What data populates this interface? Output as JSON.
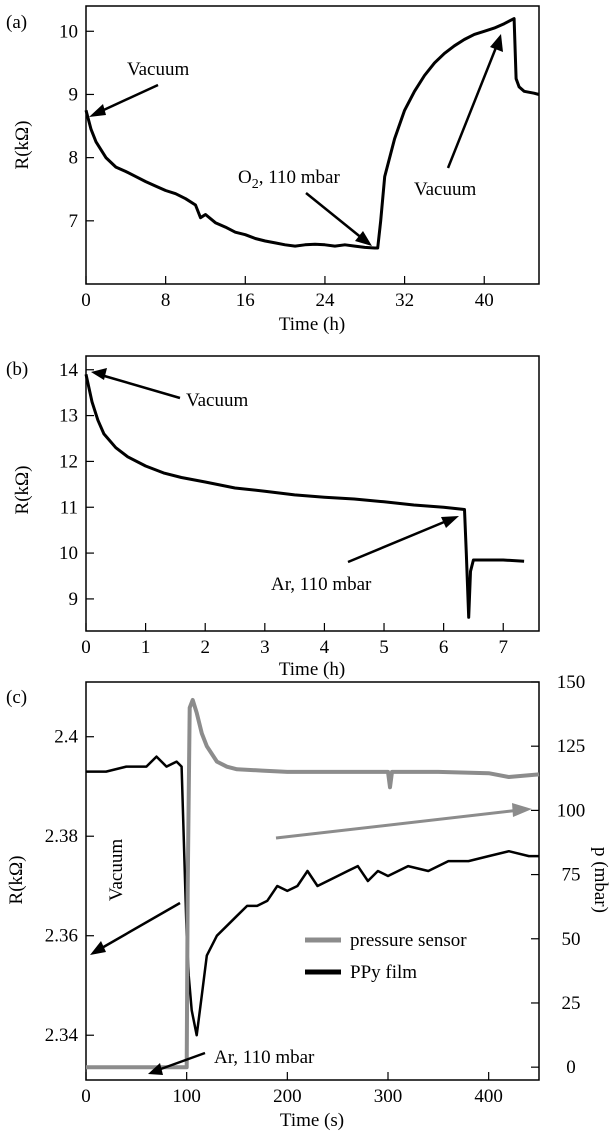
{
  "chart_data": [
    {
      "type": "line",
      "panel_label": "(a)",
      "xlabel": "Time (h)",
      "ylabel": "R(kΩ)",
      "xlim": [
        0,
        45.5
      ],
      "ylim": [
        6.0,
        10.4
      ],
      "xticks": [
        0,
        8,
        16,
        24,
        32,
        40
      ],
      "yticks": [
        7,
        8,
        9,
        10
      ],
      "series": [
        {
          "color": "#000000",
          "x": [
            0,
            0.5,
            1,
            2,
            3,
            4,
            5,
            6,
            7,
            8,
            9,
            10,
            11,
            11.5,
            12,
            13,
            14,
            15,
            16,
            17,
            18,
            19,
            20,
            21,
            22,
            23,
            24,
            25,
            26,
            27,
            28,
            29,
            29.3,
            29.6,
            30,
            31,
            32,
            33,
            34,
            35,
            36,
            37,
            38,
            39,
            40,
            41,
            42,
            43,
            43.2,
            43.5,
            44,
            45,
            45.5
          ],
          "y": [
            8.75,
            8.45,
            8.25,
            8.0,
            7.85,
            7.78,
            7.7,
            7.62,
            7.55,
            7.48,
            7.43,
            7.35,
            7.25,
            7.05,
            7.1,
            6.97,
            6.9,
            6.82,
            6.78,
            6.72,
            6.68,
            6.65,
            6.62,
            6.6,
            6.62,
            6.63,
            6.62,
            6.6,
            6.62,
            6.6,
            6.58,
            6.57,
            6.57,
            7.0,
            7.7,
            8.3,
            8.75,
            9.05,
            9.3,
            9.5,
            9.65,
            9.77,
            9.87,
            9.95,
            10.0,
            10.05,
            10.12,
            10.2,
            9.25,
            9.12,
            9.05,
            9.02,
            9.0
          ]
        }
      ],
      "annotations": [
        "Vacuum",
        "O2, 110 mbar",
        "Vacuum"
      ]
    },
    {
      "type": "line",
      "panel_label": "(b)",
      "xlabel": "Time (h)",
      "ylabel": "R(kΩ)",
      "xlim": [
        0,
        7.6
      ],
      "ylim": [
        8.3,
        14.3
      ],
      "xticks": [
        0,
        1,
        2,
        3,
        4,
        5,
        6,
        7
      ],
      "yticks": [
        9,
        10,
        11,
        12,
        13,
        14
      ],
      "series": [
        {
          "color": "#000000",
          "x": [
            0,
            0.05,
            0.1,
            0.2,
            0.3,
            0.5,
            0.7,
            1.0,
            1.3,
            1.6,
            2.0,
            2.5,
            3.0,
            3.5,
            4.0,
            4.5,
            5.0,
            5.5,
            6.0,
            6.35,
            6.38,
            6.42,
            6.45,
            6.5,
            6.6,
            7.0,
            7.35
          ],
          "y": [
            13.9,
            13.6,
            13.3,
            12.9,
            12.6,
            12.3,
            12.1,
            11.9,
            11.75,
            11.65,
            11.55,
            11.42,
            11.35,
            11.27,
            11.22,
            11.18,
            11.12,
            11.05,
            11.0,
            10.95,
            10.0,
            8.6,
            9.6,
            9.85,
            9.85,
            9.85,
            9.82
          ]
        }
      ],
      "annotations": [
        "Vacuum",
        "Ar, 110 mbar"
      ]
    },
    {
      "type": "line",
      "panel_label": "(c)",
      "xlabel": "Time (s)",
      "ylabel": "R(kΩ)",
      "ylabel_right": "p (mbar)",
      "xlim": [
        0,
        450
      ],
      "ylim": [
        2.331,
        2.411
      ],
      "ylim_right": [
        -5,
        150
      ],
      "xticks": [
        0,
        100,
        200,
        300,
        400
      ],
      "yticks": [
        2.34,
        2.36,
        2.38,
        2.4
      ],
      "yticks_right": [
        0,
        25,
        50,
        75,
        100,
        125,
        150
      ],
      "legend": [
        "pressure sensor",
        "PPy film"
      ],
      "series": [
        {
          "name": "pressure sensor",
          "axis": "right",
          "color": "#8c8c8c",
          "x": [
            0,
            100,
            101,
            103,
            106,
            110,
            115,
            120,
            130,
            140,
            150,
            175,
            200,
            250,
            300,
            302,
            304,
            350,
            400,
            420,
            450
          ],
          "y": [
            0,
            0,
            70,
            140,
            143,
            138,
            130,
            125,
            119,
            117,
            116,
            115.5,
            115,
            115,
            115,
            109,
            115,
            115,
            114.5,
            113,
            114
          ]
        },
        {
          "name": "PPy film",
          "axis": "left",
          "color": "#000000",
          "x": [
            0,
            20,
            40,
            60,
            70,
            80,
            90,
            95,
            100,
            102,
            105,
            110,
            115,
            120,
            130,
            140,
            150,
            160,
            170,
            180,
            190,
            200,
            210,
            220,
            230,
            240,
            250,
            260,
            270,
            280,
            290,
            300,
            320,
            340,
            360,
            380,
            400,
            420,
            440,
            450
          ],
          "y": [
            2.393,
            2.393,
            2.394,
            2.394,
            2.396,
            2.394,
            2.395,
            2.394,
            2.36,
            2.352,
            2.345,
            2.34,
            2.348,
            2.356,
            2.36,
            2.362,
            2.364,
            2.366,
            2.366,
            2.367,
            2.37,
            2.369,
            2.37,
            2.373,
            2.37,
            2.371,
            2.372,
            2.373,
            2.374,
            2.371,
            2.373,
            2.372,
            2.374,
            2.373,
            2.375,
            2.375,
            2.376,
            2.377,
            2.376,
            2.376
          ]
        }
      ],
      "annotations": [
        "Vacuum",
        "Ar, 110 mbar"
      ]
    }
  ],
  "text": {
    "a_vacuum": "Vacuum",
    "a_o2_prefix": "O",
    "a_o2_sub": "2",
    "a_o2_suffix": ", 110 mbar",
    "a_vacuum2": "Vacuum",
    "b_vacuum": "Vacuum",
    "b_ar": "Ar, 110 mbar",
    "c_vacuum": "Vacuum",
    "c_ar": "Ar, 110 mbar"
  },
  "colors": {
    "black": "#000000",
    "gray": "#8c8c8c",
    "arrow_gray": "#8c8c8c"
  }
}
